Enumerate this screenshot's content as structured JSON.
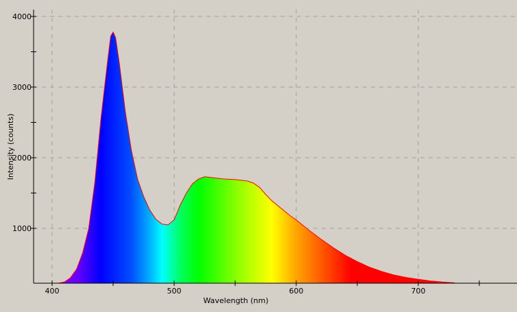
{
  "chart_data": {
    "type": "area",
    "title": "",
    "xlabel": "Wavelength (nm)",
    "ylabel": "Intensity (counts)",
    "xlim": [
      385,
      781
    ],
    "ylim": [
      223,
      4095
    ],
    "x_ticks": [
      400,
      500,
      600,
      700
    ],
    "x_tick_labels": [
      "400",
      "500",
      "600",
      "700"
    ],
    "x_minor_ticks": [
      450,
      550,
      650,
      750
    ],
    "y_ticks": [
      1000,
      2000,
      3000,
      4000
    ],
    "y_tick_labels": [
      "1000",
      "2000",
      "3000",
      "4000"
    ],
    "y_minor_ticks": [
      1500,
      2500,
      3500
    ],
    "grid": true,
    "fill": "wavelength-color spectrum gradient",
    "outline_color": "#ff0000",
    "background_color": "#d4d0c8",
    "series": [
      {
        "x": [
          405,
          410,
          415,
          420,
          425,
          430,
          435,
          440,
          445,
          448,
          450,
          452,
          455,
          460,
          465,
          470,
          475,
          480,
          485,
          490,
          495,
          500,
          505,
          510,
          515,
          520,
          525,
          530,
          540,
          550,
          560,
          565,
          570,
          575,
          580,
          585,
          590,
          595,
          600,
          610,
          620,
          630,
          640,
          650,
          660,
          670,
          680,
          690,
          700,
          710,
          720,
          730
        ],
        "y": [
          223,
          240,
          300,
          420,
          650,
          1000,
          1650,
          2550,
          3300,
          3720,
          3780,
          3700,
          3350,
          2650,
          2100,
          1700,
          1450,
          1260,
          1130,
          1060,
          1050,
          1120,
          1330,
          1500,
          1630,
          1700,
          1730,
          1720,
          1700,
          1690,
          1670,
          1640,
          1580,
          1480,
          1390,
          1320,
          1250,
          1180,
          1120,
          980,
          850,
          730,
          620,
          530,
          450,
          390,
          340,
          305,
          280,
          255,
          240,
          228
        ]
      }
    ]
  }
}
